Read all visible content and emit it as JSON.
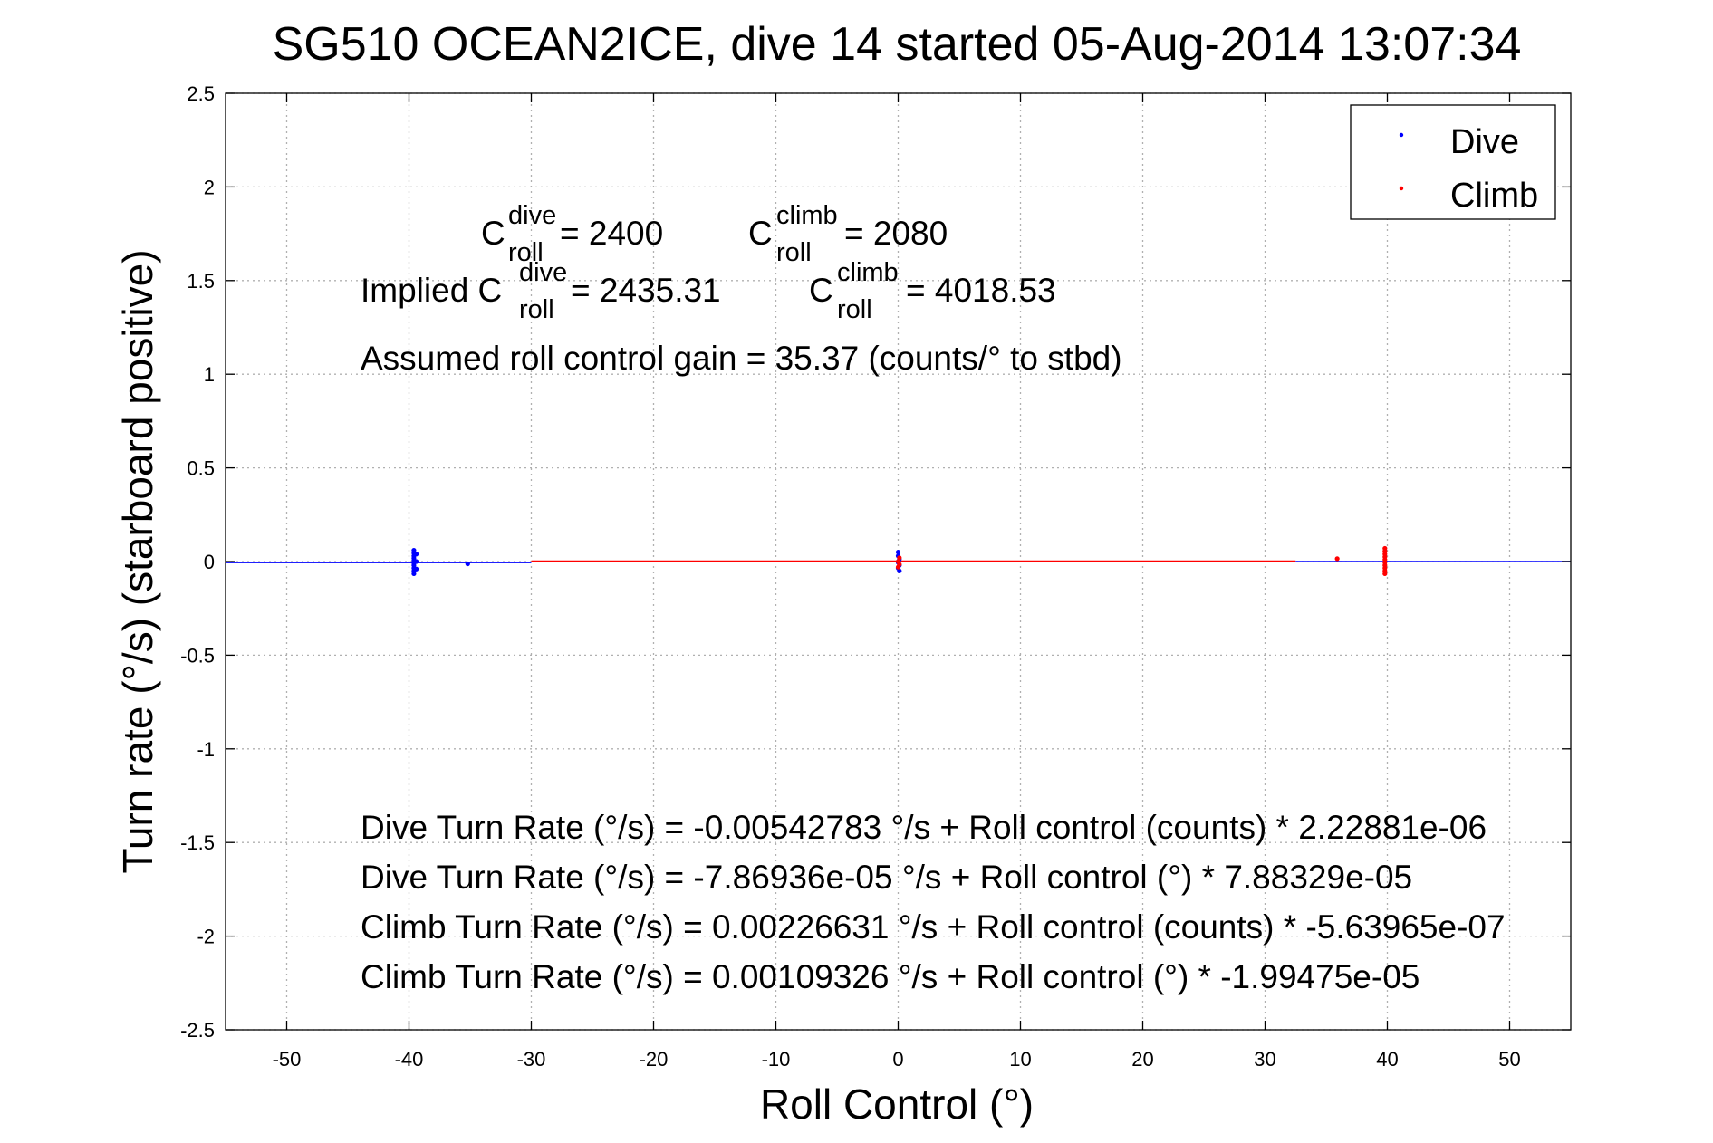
{
  "chart_data": {
    "type": "scatter",
    "title": "SG510 OCEAN2ICE, dive 14 started 05-Aug-2014 13:07:34",
    "xlabel": "Roll Control (°)",
    "ylabel": "Turn rate (°/s) (starboard positive)",
    "xlim": [
      -55,
      55
    ],
    "ylim": [
      -2.5,
      2.5
    ],
    "xticks": [
      -50,
      -40,
      -30,
      -20,
      -10,
      0,
      10,
      20,
      30,
      40,
      50
    ],
    "yticks": [
      -2.5,
      -2,
      -1.5,
      -1,
      -0.5,
      0,
      0.5,
      1,
      1.5,
      2,
      2.5
    ],
    "xtick_labels": [
      "-50",
      "-40",
      "-30",
      "-20",
      "-10",
      "0",
      "10",
      "20",
      "30",
      "40",
      "50"
    ],
    "ytick_labels": [
      "-2.5",
      "-2",
      "-1.5",
      "-1",
      "-0.5",
      "0",
      "0.5",
      "1",
      "1.5",
      "2",
      "2.5"
    ],
    "grid": true,
    "legend_position": "top-right",
    "series": [
      {
        "name": "Dive",
        "color": "#0000ff",
        "points": [
          [
            -39.6,
            0.06
          ],
          [
            -39.6,
            0.045
          ],
          [
            -39.6,
            0.03
          ],
          [
            -39.6,
            0.018
          ],
          [
            -39.6,
            0.005
          ],
          [
            -39.6,
            -0.008
          ],
          [
            -39.6,
            -0.02
          ],
          [
            -39.6,
            -0.035
          ],
          [
            -39.6,
            -0.05
          ],
          [
            -39.6,
            -0.065
          ],
          [
            -39.4,
            0.04
          ],
          [
            -39.4,
            0.0
          ],
          [
            -39.4,
            -0.04
          ],
          [
            -35.2,
            -0.012
          ],
          [
            0.0,
            0.05
          ],
          [
            0.0,
            0.03
          ],
          [
            0.1,
            0.012
          ],
          [
            0.0,
            -0.005
          ],
          [
            0.1,
            -0.02
          ],
          [
            0.0,
            -0.035
          ],
          [
            0.1,
            -0.05
          ]
        ],
        "fit_line": {
          "x": [
            -55,
            -30
          ],
          "y": [
            -0.00542783,
            -0.00542783
          ]
        }
      },
      {
        "name": "Climb",
        "color": "#ff0000",
        "points": [
          [
            39.8,
            0.07
          ],
          [
            39.8,
            0.055
          ],
          [
            39.8,
            0.04
          ],
          [
            39.8,
            0.025
          ],
          [
            39.8,
            0.01
          ],
          [
            39.8,
            -0.005
          ],
          [
            39.8,
            -0.02
          ],
          [
            39.8,
            -0.035
          ],
          [
            39.8,
            -0.05
          ],
          [
            39.8,
            -0.065
          ],
          [
            35.9,
            0.015
          ],
          [
            0.0,
            0.0
          ],
          [
            0.1,
            -0.015
          ],
          [
            0.0,
            -0.03
          ],
          [
            0.1,
            0.02
          ]
        ],
        "fit_line": {
          "x": [
            -30,
            32.5
          ],
          "y": [
            0.00226631,
            0.00226631
          ]
        }
      }
    ],
    "dive_fit_line_right": {
      "x": [
        32.5,
        55
      ],
      "y": [
        0.0,
        0.0
      ]
    },
    "annotations": {
      "c_roll_dive": {
        "base": "C",
        "sup": "dive",
        "sub": "roll",
        "rest": " = 2400"
      },
      "c_roll_climb": {
        "base": "C",
        "sup": "climb",
        "sub": "roll",
        "rest": " = 2080"
      },
      "implied_dive": {
        "prefix": "Implied C",
        "sup": "dive",
        "sub": "roll",
        "rest": " = 2435.31"
      },
      "implied_climb": {
        "base": "C",
        "sup": "climb",
        "sub": "roll",
        "rest": " = 4018.53"
      },
      "gain": "Assumed roll control gain = 35.37 (counts/° to stbd)",
      "fits": [
        "Dive Turn Rate (°/s) = -0.00542783 °/s + Roll control (counts) * 2.22881e-06",
        "Dive Turn Rate (°/s) = -7.86936e-05 °/s + Roll control (°) * 7.88329e-05",
        "Climb Turn Rate (°/s) = 0.00226631 °/s + Roll control (counts) * -5.63965e-07",
        "Climb Turn Rate (°/s) = 0.00109326 °/s + Roll control (°) * -1.99475e-05"
      ]
    }
  }
}
